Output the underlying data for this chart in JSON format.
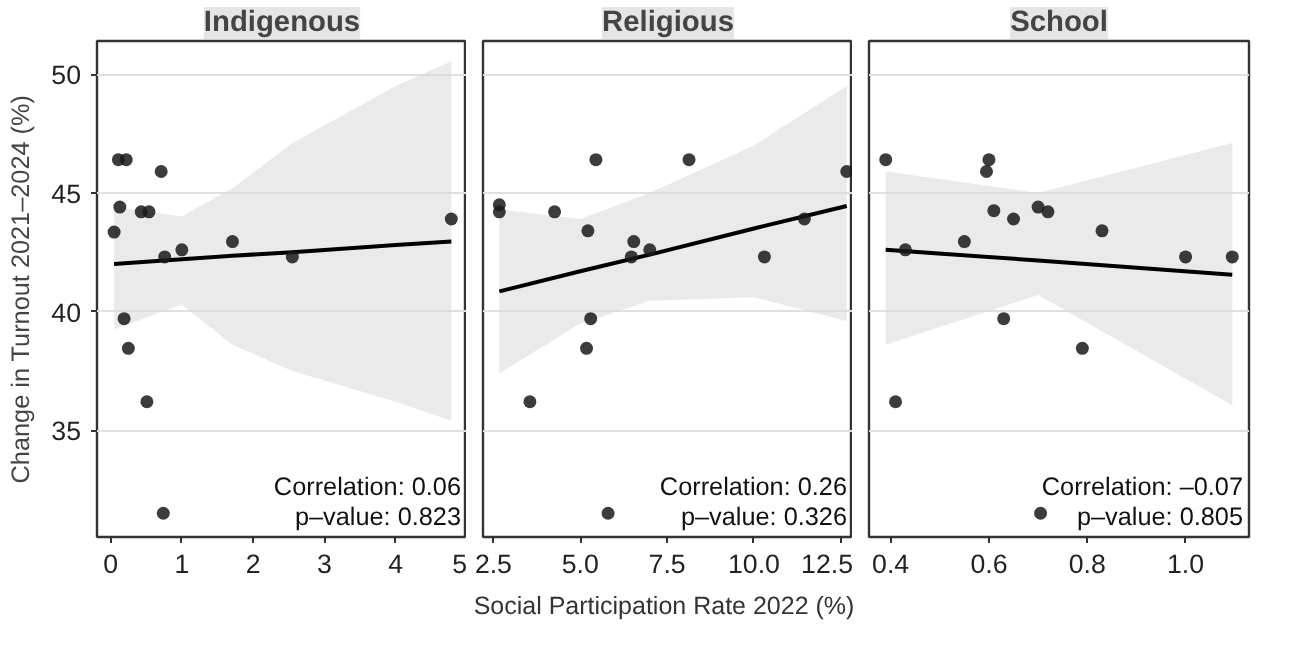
{
  "chart_data": [
    {
      "type": "scatter",
      "title": "Indigenous",
      "ylabel": "Change in Turnout 2021–2024 (%)",
      "xlim": [
        -0.19,
        5.0
      ],
      "xticks": [
        0,
        1,
        2,
        3,
        4,
        5
      ],
      "ylim": [
        30.5,
        51.4
      ],
      "yticks": [
        35,
        40,
        45,
        50
      ],
      "grid": "y",
      "annotations": [
        "Correlation: 0.06",
        "p–value: 0.823"
      ],
      "series": [
        {
          "marker": "circle",
          "color": "#1a1a1a",
          "x": [
            0.05,
            0.13,
            0.11,
            0.22,
            0.71,
            0.43,
            0.54,
            0.76,
            1.0,
            1.71,
            2.55,
            4.78,
            0.19,
            0.25,
            0.51,
            0.74
          ],
          "values": [
            43.35,
            44.4,
            46.4,
            46.4,
            45.9,
            44.2,
            44.2,
            42.3,
            42.6,
            42.95,
            42.3,
            43.9,
            39.7,
            38.45,
            36.2,
            31.5
          ]
        },
        {
          "type": "line",
          "color": "#000000",
          "x": [
            0.05,
            1,
            1.71,
            2.55,
            4,
            4.78
          ],
          "values": [
            42.0,
            42.2,
            42.35,
            42.5,
            42.8,
            42.95
          ],
          "lower": [
            39.25,
            40.3,
            38.6,
            37.5,
            36.2,
            35.4
          ],
          "upper": [
            44.4,
            44.0,
            45.2,
            47.1,
            49.5,
            50.55
          ]
        }
      ]
    },
    {
      "type": "scatter",
      "title": "Religious",
      "xlabel": "Social Participation Rate 2022 (%)",
      "xlim": [
        2.2,
        12.85
      ],
      "xticks": [
        {
          "value": 2.5,
          "label": "2.5"
        },
        {
          "value": 5,
          "label": "5.0"
        },
        {
          "value": 7.5,
          "label": "7.5"
        },
        {
          "value": 10,
          "label": "10.0"
        },
        {
          "value": 12.5,
          "label": "12.5"
        }
      ],
      "ylim": [
        30.5,
        51.4
      ],
      "yticks": [
        35,
        40,
        45,
        50
      ],
      "tick_labels": "x",
      "grid": "y",
      "annotations": [
        "Correlation: 0.26",
        "p–value: 0.326"
      ],
      "series": [
        {
          "marker": "circle",
          "color": "#1a1a1a",
          "x": [
            2.67,
            2.67,
            4.26,
            5.45,
            8.13,
            12.67,
            5.22,
            6.54,
            6.47,
            7.0,
            10.3,
            11.45,
            5.3,
            5.18,
            3.55,
            5.8
          ],
          "values": [
            44.5,
            44.2,
            44.2,
            46.4,
            46.4,
            45.9,
            43.4,
            42.95,
            42.3,
            42.6,
            42.3,
            43.9,
            39.7,
            38.45,
            36.2,
            31.5
          ]
        },
        {
          "type": "line",
          "color": "#000000",
          "x": [
            2.67,
            5,
            7,
            10,
            12.67
          ],
          "values": [
            40.85,
            41.7,
            42.4,
            43.5,
            44.45
          ],
          "lower": [
            37.4,
            39.5,
            40.45,
            40.6,
            39.6
          ],
          "upper": [
            44.3,
            43.9,
            45.0,
            47.0,
            49.5
          ]
        }
      ]
    },
    {
      "type": "scatter",
      "title": "School",
      "xlim": [
        0.356,
        1.129
      ],
      "xticks": [
        {
          "value": 0.4,
          "label": "0.4"
        },
        {
          "value": 0.6,
          "label": "0.6"
        },
        {
          "value": 0.8,
          "label": "0.8"
        },
        {
          "value": 1.0,
          "label": "1.0"
        }
      ],
      "ylim": [
        30.5,
        51.4
      ],
      "yticks": [
        35,
        40,
        45,
        50
      ],
      "tick_labels": "x",
      "grid": "y",
      "annotations": [
        "Correlation: –0.07",
        "p–value: 0.805"
      ],
      "series": [
        {
          "marker": "circle",
          "color": "#1a1a1a",
          "x": [
            0.39,
            0.6,
            0.595,
            0.61,
            0.65,
            0.7,
            0.72,
            0.83,
            0.55,
            0.43,
            1.0,
            1.095,
            0.63,
            0.79,
            0.41,
            0.705
          ],
          "values": [
            46.4,
            46.4,
            45.9,
            44.25,
            43.9,
            44.4,
            44.2,
            43.4,
            42.95,
            42.6,
            42.3,
            42.3,
            39.7,
            38.45,
            36.2,
            31.5
          ]
        },
        {
          "type": "line",
          "color": "#000000",
          "x": [
            0.39,
            0.7,
            1.095
          ],
          "values": [
            42.6,
            42.15,
            41.55
          ],
          "lower": [
            38.6,
            40.7,
            36.05
          ],
          "upper": [
            45.9,
            45.0,
            47.1
          ]
        }
      ]
    }
  ]
}
